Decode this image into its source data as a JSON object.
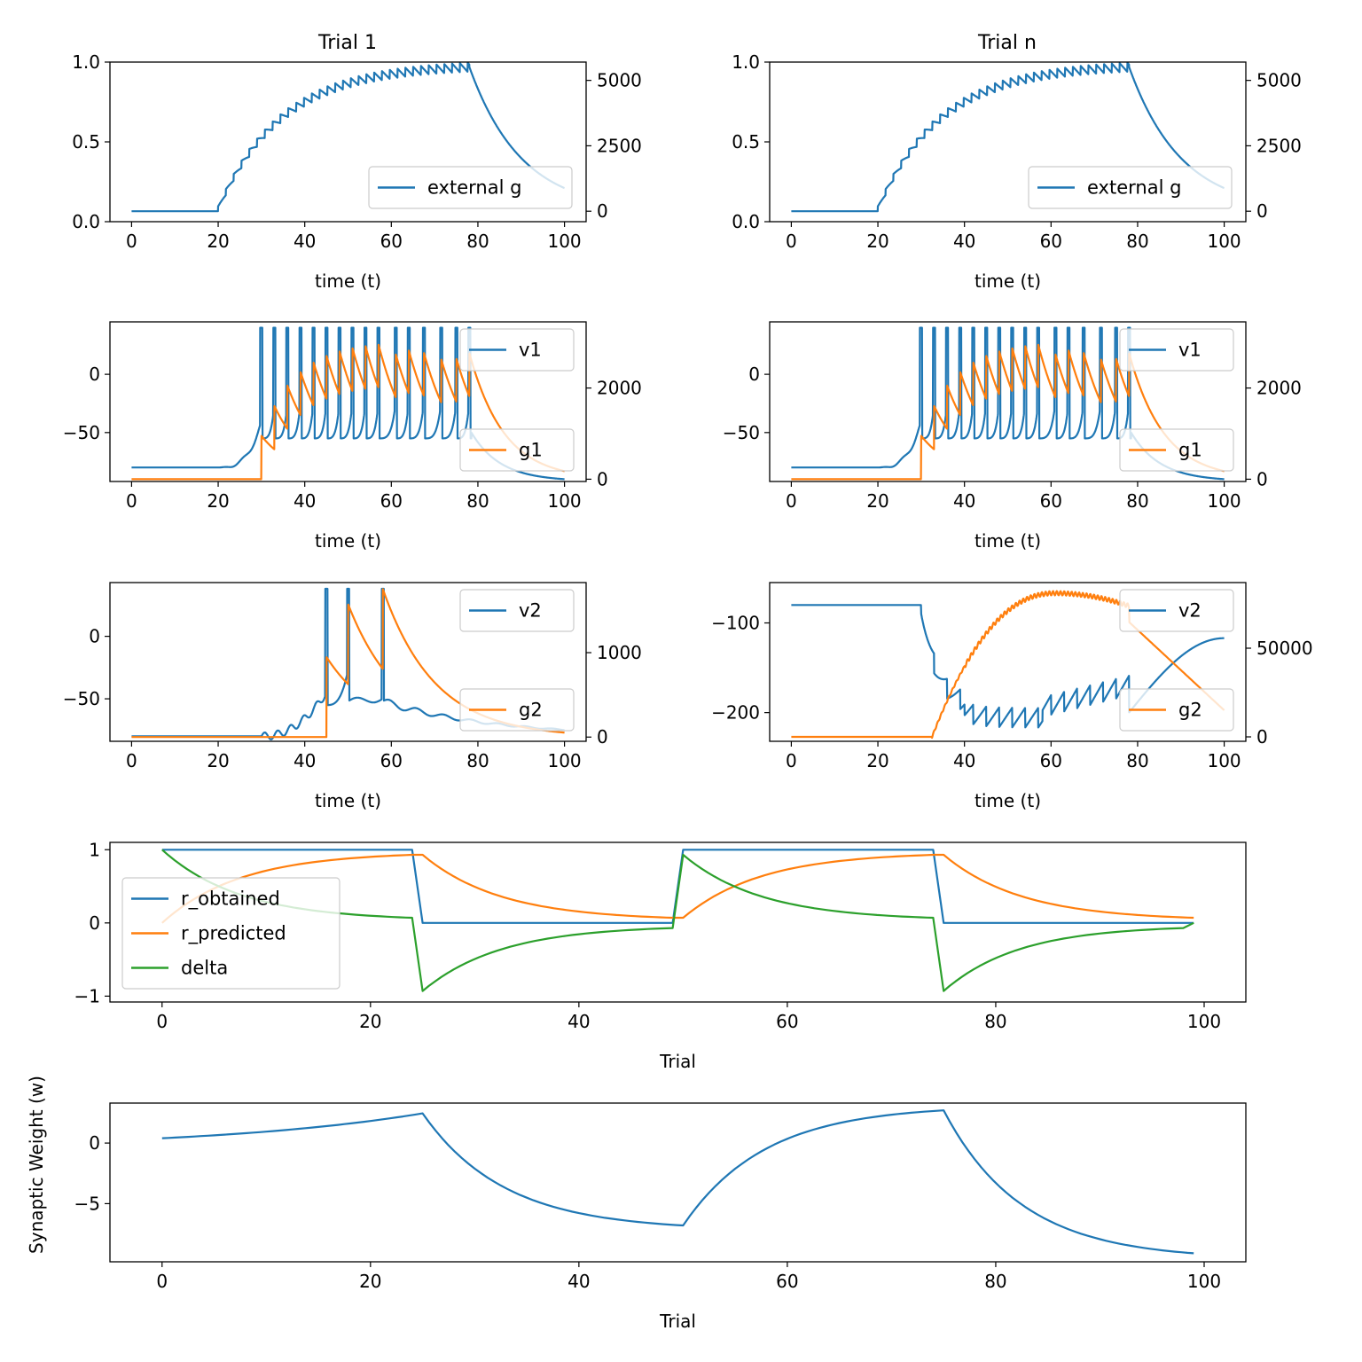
{
  "figure": {
    "background": "#ffffff"
  },
  "colors": {
    "C0": "#1f77b4",
    "C1": "#ff7f0e",
    "C2": "#2ca02c",
    "axis": "#000000"
  },
  "chart_data": [
    {
      "id": "p1",
      "type": "line",
      "title": "Trial 1",
      "xlabel": "time (t)",
      "xlim": [
        -5,
        105
      ],
      "xticks": [
        0,
        20,
        40,
        60,
        80,
        100
      ],
      "ylim": [
        0,
        1
      ],
      "yticks": [
        0,
        0.5,
        1
      ],
      "ytick_labels": [
        "0.0",
        "0.5",
        "1.0"
      ],
      "y2lim": [
        -400,
        5700
      ],
      "y2ticks": [
        0,
        2500,
        5000
      ],
      "legend": {
        "placement": "lower-right",
        "entries": [
          {
            "label": "external g",
            "color": "#1f77b4"
          }
        ]
      },
      "series": [
        {
          "name": "external g",
          "color": "#1f77b4",
          "axis": "y2",
          "kind": "ext_g",
          "start": 20,
          "stop": 78,
          "spike_period": 1.8,
          "jump": 700,
          "tau": 15,
          "plateau": 5450,
          "decay_tau": 12
        }
      ]
    },
    {
      "id": "p2",
      "type": "line",
      "title": "Trial n",
      "xlabel": "time (t)",
      "xlim": [
        -5,
        105
      ],
      "xticks": [
        0,
        20,
        40,
        60,
        80,
        100
      ],
      "ylim": [
        0,
        1
      ],
      "yticks": [
        0,
        0.5,
        1
      ],
      "ytick_labels": [
        "0.0",
        "0.5",
        "1.0"
      ],
      "y2lim": [
        -400,
        5700
      ],
      "y2ticks": [
        0,
        2500,
        5000
      ],
      "legend": {
        "placement": "lower-right",
        "entries": [
          {
            "label": "external g",
            "color": "#1f77b4"
          }
        ]
      },
      "series": [
        {
          "name": "external g",
          "color": "#1f77b4",
          "axis": "y2",
          "kind": "ext_g",
          "start": 20,
          "stop": 78,
          "spike_period": 1.8,
          "jump": 700,
          "tau": 15,
          "plateau": 5450,
          "decay_tau": 12
        }
      ]
    },
    {
      "id": "p3",
      "type": "line",
      "title": "",
      "xlabel": "time (t)",
      "xlim": [
        -5,
        105
      ],
      "xticks": [
        0,
        20,
        40,
        60,
        80,
        100
      ],
      "ylim": [
        -92,
        45
      ],
      "yticks": [
        -50,
        0
      ],
      "ytick_labels": [
        "−50",
        "0"
      ],
      "y2lim": [
        -50,
        3450
      ],
      "y2ticks": [
        0,
        2000
      ],
      "legend_top": {
        "placement": "upper-right",
        "entries": [
          {
            "label": "v1",
            "color": "#1f77b4"
          }
        ]
      },
      "legend_bottom": {
        "placement": "lower-right",
        "entries": [
          {
            "label": "g1",
            "color": "#ff7f0e"
          }
        ]
      },
      "series": [
        {
          "name": "v1",
          "color": "#1f77b4",
          "axis": "y",
          "kind": "spike_v",
          "rest": -80,
          "start": 20,
          "stop": 78,
          "spikes": [
            30,
            33,
            36,
            39,
            42,
            45,
            48,
            51,
            54,
            57,
            61,
            64,
            67.5,
            71.5,
            75,
            78
          ],
          "peak": 40,
          "reset": -55,
          "tail_end": -90
        },
        {
          "name": "g1",
          "color": "#ff7f0e",
          "axis": "y2",
          "kind": "syn_g",
          "jumps": [
            30,
            33,
            36,
            39,
            42,
            45,
            48,
            51,
            54,
            57,
            61,
            64,
            67.5,
            71.5,
            75,
            78
          ],
          "jump": 1000,
          "tau": 8
        }
      ]
    },
    {
      "id": "p4",
      "type": "line",
      "title": "",
      "xlabel": "time (t)",
      "xlim": [
        -5,
        105
      ],
      "xticks": [
        0,
        20,
        40,
        60,
        80,
        100
      ],
      "ylim": [
        -92,
        45
      ],
      "yticks": [
        -50,
        0
      ],
      "ytick_labels": [
        "−50",
        "0"
      ],
      "y2lim": [
        -50,
        3450
      ],
      "y2ticks": [
        0,
        2000
      ],
      "legend_top": {
        "placement": "upper-right",
        "entries": [
          {
            "label": "v1",
            "color": "#1f77b4"
          }
        ]
      },
      "legend_bottom": {
        "placement": "lower-right",
        "entries": [
          {
            "label": "g1",
            "color": "#ff7f0e"
          }
        ]
      },
      "series": [
        {
          "name": "v1",
          "color": "#1f77b4",
          "axis": "y",
          "kind": "spike_v",
          "rest": -80,
          "start": 20,
          "stop": 78,
          "spikes": [
            30,
            33,
            36,
            39,
            42,
            45,
            48,
            51,
            54,
            57,
            61,
            64,
            67.5,
            71.5,
            75,
            78
          ],
          "peak": 40,
          "reset": -55,
          "tail_end": -90
        },
        {
          "name": "g1",
          "color": "#ff7f0e",
          "axis": "y2",
          "kind": "syn_g",
          "jumps": [
            30,
            33,
            36,
            39,
            42,
            45,
            48,
            51,
            54,
            57,
            61,
            64,
            67.5,
            71.5,
            75,
            78
          ],
          "jump": 1000,
          "tau": 8
        }
      ]
    },
    {
      "id": "p5",
      "type": "line",
      "title": "",
      "xlabel": "time (t)",
      "xlim": [
        -5,
        105
      ],
      "xticks": [
        0,
        20,
        40,
        60,
        80,
        100
      ],
      "ylim": [
        -84,
        43
      ],
      "yticks": [
        -50,
        0
      ],
      "ytick_labels": [
        "−50",
        "0"
      ],
      "y2lim": [
        -50,
        1830
      ],
      "y2ticks": [
        0,
        1000
      ],
      "legend_top": {
        "placement": "upper-right",
        "entries": [
          {
            "label": "v2",
            "color": "#1f77b4"
          }
        ]
      },
      "legend_bottom": {
        "placement": "lower-right",
        "entries": [
          {
            "label": "g2",
            "color": "#ff7f0e"
          }
        ]
      },
      "series": [
        {
          "name": "v2",
          "color": "#1f77b4",
          "axis": "y",
          "kind": "v2_trial1",
          "rest": -80,
          "spikes": [
            45,
            50,
            58
          ],
          "peak": 38
        },
        {
          "name": "g2",
          "color": "#ff7f0e",
          "axis": "y2",
          "kind": "syn_g",
          "jumps": [
            45,
            50,
            58
          ],
          "jump": 1000,
          "tau": 12
        }
      ]
    },
    {
      "id": "p6",
      "type": "line",
      "title": "",
      "xlabel": "time (t)",
      "xlim": [
        -5,
        105
      ],
      "xticks": [
        0,
        20,
        40,
        60,
        80,
        100
      ],
      "ylim": [
        -232,
        -55
      ],
      "yticks": [
        -200,
        -100
      ],
      "ytick_labels": [
        "−200",
        "−100"
      ],
      "y2lim": [
        -2500,
        87000
      ],
      "y2ticks": [
        0,
        50000
      ],
      "legend_top": {
        "placement": "upper-right",
        "entries": [
          {
            "label": "v2",
            "color": "#1f77b4"
          }
        ]
      },
      "legend_bottom": {
        "placement": "lower-right",
        "entries": [
          {
            "label": "g2",
            "color": "#ff7f0e"
          }
        ]
      },
      "series": [
        {
          "name": "v2",
          "color": "#1f77b4",
          "axis": "y",
          "kind": "v2_trialn",
          "rest": -80,
          "start": 30,
          "stop": 78,
          "final": -117
        },
        {
          "name": "g2",
          "color": "#ff7f0e",
          "axis": "y2",
          "kind": "g2_trialn",
          "start": 32.5,
          "peak_t": 61,
          "peak": 81000,
          "stop": 78,
          "final": 15000
        }
      ]
    },
    {
      "id": "p7",
      "type": "line",
      "title": "",
      "xlabel": "Trial",
      "ylabel": "",
      "xlim": [
        -5,
        104
      ],
      "xticks": [
        0,
        20,
        40,
        60,
        80,
        100
      ],
      "ylim": [
        -1.08,
        1.1
      ],
      "yticks": [
        -1,
        0,
        1
      ],
      "ytick_labels": [
        "−1",
        "0",
        "1"
      ],
      "legend": {
        "placement": "center-left",
        "entries": [
          {
            "label": "r_obtained",
            "color": "#1f77b4"
          },
          {
            "label": "r_predicted",
            "color": "#ff7f0e"
          },
          {
            "label": "delta",
            "color": "#2ca02c"
          }
        ]
      },
      "series": [
        {
          "name": "r_obtained",
          "color": "#1f77b4",
          "kind": "r_obtained",
          "blocks": [
            [
              0,
              24,
              1
            ],
            [
              25,
              49,
              0
            ],
            [
              50,
              74,
              1
            ],
            [
              75,
              98,
              0
            ]
          ]
        },
        {
          "name": "r_predicted",
          "color": "#ff7f0e",
          "kind": "r_predicted",
          "points": [
            [
              0,
              0
            ],
            [
              24,
              0.93
            ],
            [
              25,
              0.93
            ],
            [
              49,
              0.07
            ],
            [
              50,
              0.07
            ],
            [
              74,
              0.93
            ],
            [
              75,
              0.93
            ],
            [
              99,
              0.07
            ]
          ]
        },
        {
          "name": "delta",
          "color": "#2ca02c",
          "kind": "delta",
          "points": [
            [
              0,
              1
            ],
            [
              24,
              0.07
            ],
            [
              25,
              -0.93
            ],
            [
              49,
              -0.07
            ],
            [
              50,
              0.93
            ],
            [
              74,
              0.07
            ],
            [
              75,
              -0.93
            ],
            [
              98,
              -0.07
            ],
            [
              99,
              0
            ]
          ]
        }
      ]
    },
    {
      "id": "p8",
      "type": "line",
      "title": "",
      "xlabel": "Trial",
      "ylabel": "Synaptic Weight (w)",
      "xlim": [
        -5,
        104
      ],
      "xticks": [
        0,
        20,
        40,
        60,
        80,
        100
      ],
      "ylim": [
        -9.8,
        3.3
      ],
      "yticks": [
        -5,
        0
      ],
      "ytick_labels": [
        "−5",
        "0"
      ],
      "series": [
        {
          "name": "w",
          "color": "#1f77b4",
          "kind": "weight",
          "points": [
            [
              0,
              0.4
            ],
            [
              25,
              2.45
            ],
            [
              50,
              -6.8
            ],
            [
              75,
              2.7
            ],
            [
              99,
              -9.1
            ]
          ]
        }
      ]
    }
  ]
}
